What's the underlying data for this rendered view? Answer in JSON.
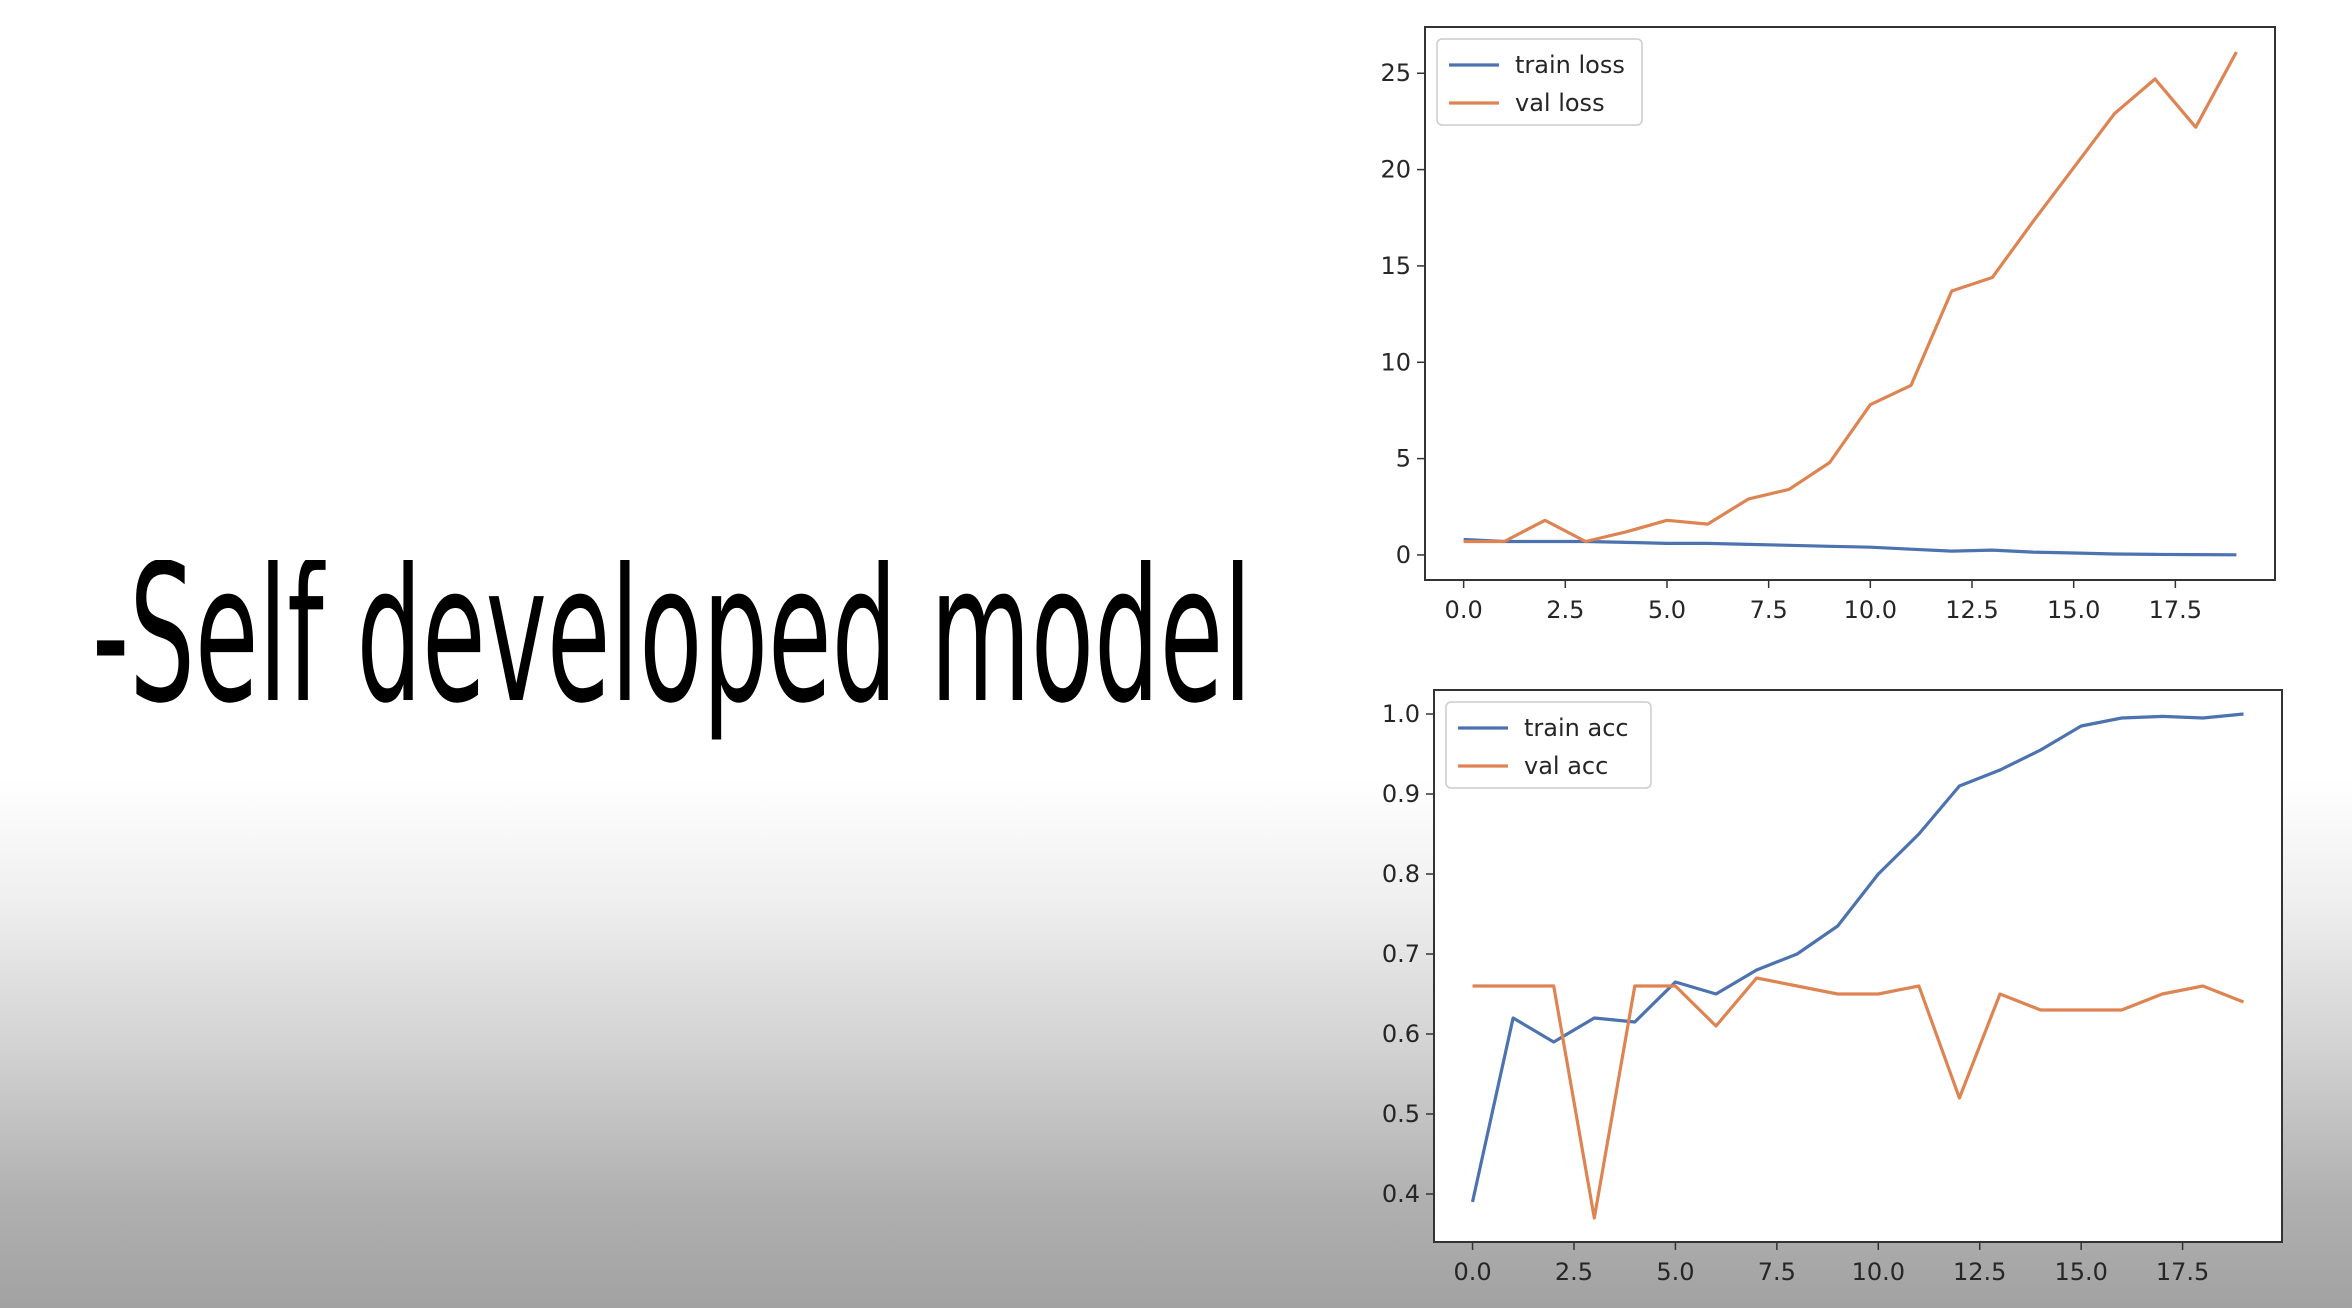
{
  "slide": {
    "title": "-Self developed model"
  },
  "chart_data": [
    {
      "type": "line",
      "title": "",
      "xlabel": "",
      "ylabel": "",
      "xlim": [
        -0.95,
        19.95
      ],
      "ylim": [
        -1.3,
        27.4
      ],
      "xticks": [
        "0.0",
        "2.5",
        "5.0",
        "7.5",
        "10.0",
        "12.5",
        "15.0",
        "17.5"
      ],
      "yticks": [
        "0",
        "5",
        "10",
        "15",
        "20",
        "25"
      ],
      "legend_position": "top-left",
      "grid": false,
      "x": [
        0,
        1,
        2,
        3,
        4,
        5,
        6,
        7,
        8,
        9,
        10,
        11,
        12,
        13,
        14,
        15,
        16,
        17,
        18,
        19
      ],
      "series": [
        {
          "name": "train loss",
          "color": "#4c72b0",
          "values": [
            0.8,
            0.7,
            0.7,
            0.7,
            0.65,
            0.6,
            0.6,
            0.55,
            0.5,
            0.45,
            0.4,
            0.3,
            0.2,
            0.25,
            0.15,
            0.1,
            0.05,
            0.03,
            0.02,
            0.01
          ]
        },
        {
          "name": "val loss",
          "color": "#dd8452",
          "values": [
            0.7,
            0.7,
            1.8,
            0.7,
            1.2,
            1.8,
            1.6,
            2.9,
            3.4,
            4.8,
            7.8,
            8.8,
            13.7,
            14.4,
            17.3,
            20.1,
            22.9,
            24.7,
            22.2,
            26.1
          ]
        }
      ]
    },
    {
      "type": "line",
      "title": "",
      "xlabel": "",
      "ylabel": "",
      "xlim": [
        -0.95,
        19.95
      ],
      "ylim": [
        0.34,
        1.03
      ],
      "xticks": [
        "0.0",
        "2.5",
        "5.0",
        "7.5",
        "10.0",
        "12.5",
        "15.0",
        "17.5"
      ],
      "yticks": [
        "0.4",
        "0.5",
        "0.6",
        "0.7",
        "0.8",
        "0.9",
        "1.0"
      ],
      "legend_position": "top-left",
      "grid": false,
      "x": [
        0,
        1,
        2,
        3,
        4,
        5,
        6,
        7,
        8,
        9,
        10,
        11,
        12,
        13,
        14,
        15,
        16,
        17,
        18,
        19
      ],
      "series": [
        {
          "name": "train acc",
          "color": "#4c72b0",
          "values": [
            0.39,
            0.62,
            0.59,
            0.62,
            0.615,
            0.665,
            0.65,
            0.68,
            0.7,
            0.735,
            0.8,
            0.85,
            0.91,
            0.93,
            0.955,
            0.985,
            0.995,
            0.997,
            0.995,
            1.0
          ]
        },
        {
          "name": "val acc",
          "color": "#dd8452",
          "values": [
            0.66,
            0.66,
            0.66,
            0.37,
            0.66,
            0.66,
            0.61,
            0.67,
            0.66,
            0.65,
            0.65,
            0.66,
            0.52,
            0.65,
            0.63,
            0.63,
            0.63,
            0.65,
            0.66,
            0.64
          ]
        }
      ]
    }
  ]
}
